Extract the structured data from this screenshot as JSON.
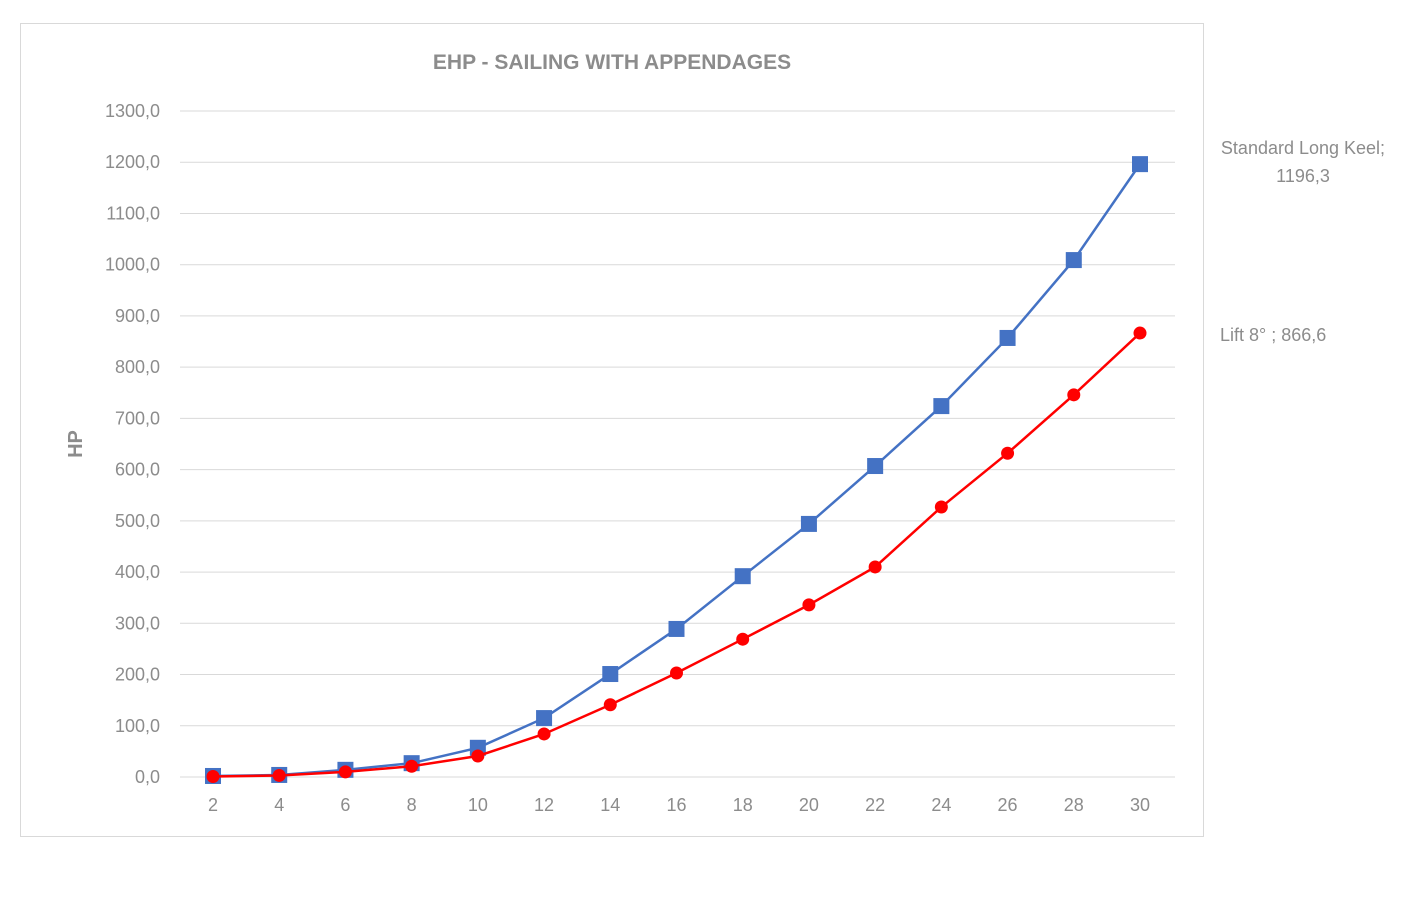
{
  "chart_data": {
    "type": "line",
    "title": "EHP - SAILING WITH APPENDAGES",
    "xlabel": "",
    "ylabel": "HP",
    "ylim": [
      0,
      1300
    ],
    "grid": true,
    "x": [
      2,
      4,
      6,
      8,
      10,
      12,
      14,
      16,
      18,
      20,
      22,
      24,
      26,
      28,
      30
    ],
    "y_ticks": [
      "0,0",
      "100,0",
      "200,0",
      "300,0",
      "400,0",
      "500,0",
      "600,0",
      "700,0",
      "800,0",
      "900,0",
      "1000,0",
      "1100,0",
      "1200,0",
      "1300,0"
    ],
    "series": [
      {
        "name": "Standard Long Keel",
        "color": "#4472C4",
        "marker": "square",
        "values": [
          2,
          4,
          14,
          27,
          57,
          115,
          201,
          289,
          392,
          494,
          607,
          724,
          857,
          1009,
          1196.3
        ],
        "end_label_line1": "Standard Long Keel;",
        "end_label_line2": "1196,3"
      },
      {
        "name": "Lift 8°",
        "color": "#FF0000",
        "marker": "circle",
        "values": [
          1,
          3,
          10,
          21,
          41,
          84,
          141,
          203,
          269,
          336,
          410,
          527,
          632,
          746,
          866.6
        ],
        "end_label": "Lift 8° ; 866,6"
      }
    ]
  }
}
